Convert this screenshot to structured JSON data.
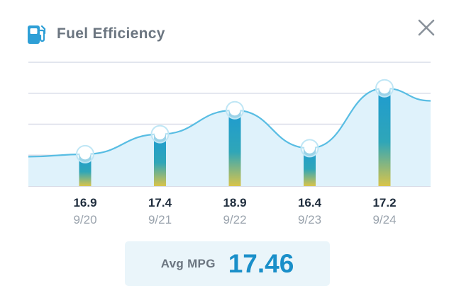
{
  "header": {
    "title": "Fuel Efficiency",
    "icon": "fuel-pump-icon",
    "close_icon": "close-icon"
  },
  "colors": {
    "accent": "#1a8fc9",
    "bar_top": "#1e9bd1",
    "bar_bottom": "#d9c44a",
    "fill": "#dff2fb",
    "line": "#58bde3",
    "grid": "#d9dde8"
  },
  "chart_data": {
    "type": "bar",
    "title": "Fuel Efficiency",
    "categories": [
      "9/20",
      "9/21",
      "9/22",
      "9/23",
      "9/24"
    ],
    "values": [
      16.9,
      17.4,
      18.9,
      16.4,
      17.2
    ],
    "value_labels": [
      "16.9",
      "17.4",
      "18.9",
      "16.4",
      "17.2"
    ],
    "marker_levels": [
      16.9,
      17.9,
      19.1,
      17.2,
      20.2
    ],
    "overlay_line": "smooth curve through markers",
    "ylim": [
      15.3,
      21.5
    ],
    "grid": true,
    "gridlines": 5,
    "xlabel": "",
    "ylabel": ""
  },
  "summary": {
    "label": "Avg MPG",
    "value": "17.46"
  }
}
